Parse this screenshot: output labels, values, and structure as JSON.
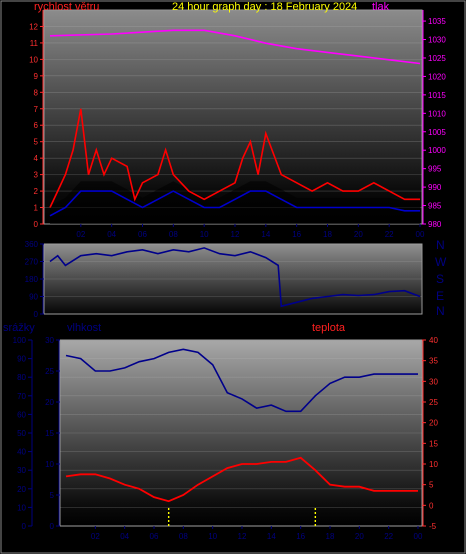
{
  "header": {
    "wind_label": "rychlost větru",
    "title": "24 hour graph day : 18 February 2024",
    "pressure_label": "tlak"
  },
  "compass": [
    "N",
    "W",
    "S",
    "E",
    "N"
  ],
  "bottom_header": {
    "rain_label": "srážky",
    "humidity_label": "vlhkost",
    "temperature_label": "teplota"
  },
  "colors": {
    "wind": "#ff0000",
    "wind_avg": "#0000cc",
    "pressure": "#ff00ff",
    "direction": "#00008b",
    "humidity": "#00008b",
    "temperature": "#ff0000",
    "rain": "#ffff00",
    "title": "#ffff00"
  },
  "x_ticks": [
    "02",
    "04",
    "06",
    "08",
    "10",
    "12",
    "14",
    "16",
    "18",
    "20",
    "22",
    "00"
  ],
  "chart_data": [
    {
      "type": "line",
      "name": "wind-pressure",
      "ylim_left": [
        0,
        13
      ],
      "left_ticks": [
        "0",
        "1",
        "2",
        "3",
        "4",
        "5",
        "6",
        "7",
        "8",
        "9",
        "10",
        "11",
        "12"
      ],
      "ylim_right": [
        980,
        1038
      ],
      "right_ticks": [
        "980",
        "985",
        "990",
        "995",
        "1000",
        "1005",
        "1010",
        "1015",
        "1020",
        "1025",
        "1030",
        "1035"
      ],
      "pressure": {
        "x": [
          0,
          4,
          8,
          10,
          12,
          14,
          16,
          18,
          20,
          22,
          24
        ],
        "y": [
          1031,
          1031.5,
          1032.5,
          1032.5,
          1031,
          1029,
          1027.5,
          1026.5,
          1025.5,
          1024.5,
          1023.5
        ]
      },
      "wind_gust": {
        "x": [
          0,
          0.5,
          1,
          1.5,
          2,
          2.5,
          3,
          3.5,
          4,
          5,
          5.5,
          6,
          7,
          7.5,
          8,
          9,
          10,
          11,
          12,
          12.5,
          13,
          13.5,
          14,
          15,
          16,
          17,
          18,
          19,
          20,
          21,
          22,
          23,
          24
        ],
        "y": [
          1,
          2,
          3,
          4.5,
          7,
          3,
          4.5,
          3,
          4,
          3.5,
          1.5,
          2.5,
          3,
          4.5,
          3,
          2,
          1.5,
          2,
          2.5,
          4,
          5,
          3,
          5.5,
          3,
          2.5,
          2,
          2.5,
          2,
          2,
          2.5,
          2,
          1.5,
          1.5
        ]
      },
      "wind_avg": {
        "x": [
          0,
          1,
          2,
          3,
          4,
          5,
          6,
          7,
          8,
          9,
          10,
          11,
          12,
          13,
          14,
          15,
          16,
          17,
          18,
          19,
          20,
          21,
          22,
          23,
          24
        ],
        "y": [
          0.5,
          1,
          2,
          2,
          2,
          1.5,
          1,
          1.5,
          2,
          1.5,
          1,
          1,
          1.5,
          2,
          2,
          1.5,
          1,
          1,
          1,
          1,
          1,
          1,
          1,
          0.8,
          0.8
        ]
      }
    },
    {
      "type": "line",
      "name": "wind-direction",
      "ylim": [
        0,
        360
      ],
      "ticks": [
        "0",
        "90",
        "180",
        "270",
        "360"
      ],
      "x": [
        0,
        0.5,
        1,
        2,
        3,
        4,
        5,
        6,
        7,
        8,
        9,
        10,
        11,
        12,
        13,
        14,
        14.8,
        15,
        16,
        17,
        18,
        19,
        20,
        21,
        22,
        23,
        24
      ],
      "y": [
        270,
        300,
        250,
        300,
        310,
        300,
        320,
        330,
        310,
        330,
        320,
        340,
        310,
        300,
        320,
        290,
        250,
        40,
        60,
        80,
        90,
        100,
        95,
        100,
        115,
        120,
        90
      ]
    },
    {
      "type": "line",
      "name": "humidity-temperature",
      "ylim_left": [
        0,
        100
      ],
      "left_ticks": [
        "0",
        "10",
        "20",
        "30",
        "40",
        "50",
        "60",
        "70",
        "80",
        "90",
        "100"
      ],
      "ylim_humidity": [
        0,
        30
      ],
      "humidity_ticks": [
        "0",
        "5",
        "10",
        "15",
        "20",
        "25",
        "30"
      ],
      "ylim_right": [
        -5,
        40
      ],
      "right_ticks": [
        "-5",
        "0",
        "5",
        "10",
        "15",
        "20",
        "25",
        "30",
        "35",
        "40"
      ],
      "humidity": {
        "x": [
          0,
          1,
          2,
          3,
          4,
          5,
          6,
          7,
          8,
          9,
          10,
          11,
          12,
          13,
          14,
          15,
          16,
          17,
          18,
          19,
          20,
          21,
          22,
          23,
          24
        ],
        "y": [
          27.5,
          27,
          25,
          25,
          25.5,
          26.5,
          27,
          28,
          28.5,
          28,
          26,
          21.5,
          20.5,
          19,
          19.5,
          18.5,
          18.5,
          21,
          23,
          24,
          24,
          24.5,
          24.5,
          24.5,
          24.5
        ]
      },
      "temperature": {
        "x": [
          0,
          1,
          2,
          3,
          4,
          5,
          6,
          7,
          8,
          9,
          10,
          11,
          12,
          13,
          14,
          15,
          16,
          17,
          18,
          19,
          20,
          21,
          22,
          23,
          24
        ],
        "y": [
          7,
          7.5,
          7.5,
          6.5,
          5,
          4,
          2,
          1,
          2.5,
          5,
          7,
          9,
          10,
          10,
          10.5,
          10.5,
          11.5,
          8.5,
          5,
          4.5,
          4.5,
          3.5,
          3.5,
          3.5,
          3.5
        ]
      },
      "rain_marks": {
        "x": [
          7,
          17
        ],
        "y": [
          2.5,
          2.5
        ]
      }
    }
  ]
}
